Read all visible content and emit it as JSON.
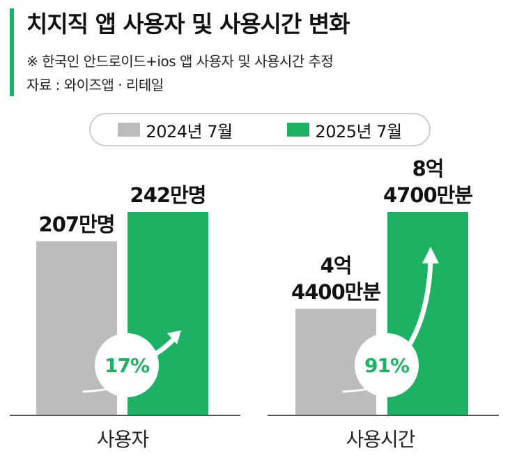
{
  "header": {
    "title": "치지직 앱 사용자 및 사용시간 변화",
    "note": "※ 한국인 안드로이드+ios 앱 사용자 및 사용시간 추정",
    "source": "자료 : 와이즈앱 · 리테일"
  },
  "colors": {
    "accent": "#1db164",
    "gray": "#bcbcbc",
    "green": "#1db164",
    "axis": "#555555"
  },
  "chart_data": {
    "type": "bar",
    "legend": [
      {
        "name": "2024년 7월",
        "color": "#bcbcbc"
      },
      {
        "name": "2025년 7월",
        "color": "#1db164"
      }
    ],
    "panels": [
      {
        "category": "사용자",
        "unit": "만명",
        "values": [
          207,
          242
        ],
        "labels": [
          [
            "207만명"
          ],
          [
            "242만명"
          ]
        ],
        "change": "17%"
      },
      {
        "category": "사용시간",
        "unit": "만분",
        "values": [
          44400,
          84700
        ],
        "labels": [
          [
            "4억",
            "4400만분"
          ],
          [
            "8억",
            "4700만분"
          ]
        ],
        "change": "91%"
      }
    ]
  }
}
